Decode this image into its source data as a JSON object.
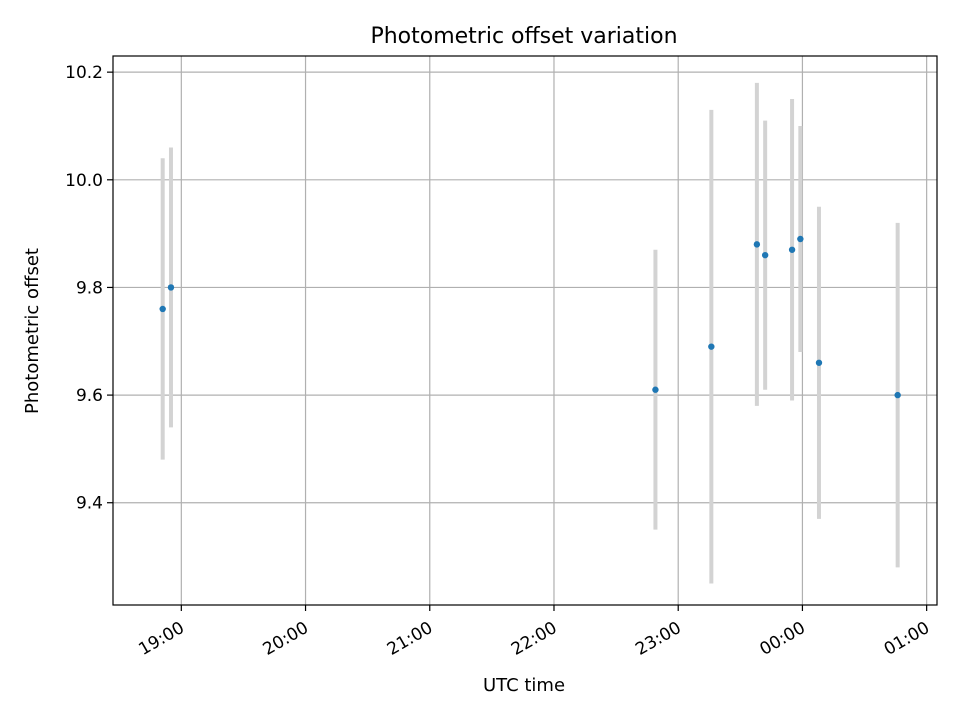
{
  "chart_data": {
    "type": "scatter",
    "title": "Photometric offset variation",
    "xlabel": "UTC time",
    "ylabel": "Photometric offset",
    "x_axis_type": "time",
    "x_ticks": [
      "19:00",
      "20:00",
      "21:00",
      "22:00",
      "23:00",
      "00:00",
      "01:00"
    ],
    "y_ticks": [
      "9.4",
      "9.6",
      "9.8",
      "10.0",
      "10.2"
    ],
    "xlim": [
      "18:27",
      "01:05"
    ],
    "ylim": [
      9.21,
      10.23
    ],
    "grid": true,
    "legend": false,
    "series": [
      {
        "marker_color": "#1f77b4",
        "errorbar_color": "#d3d3d3",
        "points": [
          {
            "x": "18:51",
            "y": 9.76,
            "err": 0.28
          },
          {
            "x": "18:55",
            "y": 9.8,
            "err": 0.26
          },
          {
            "x": "22:49",
            "y": 9.61,
            "err": 0.26
          },
          {
            "x": "23:16",
            "y": 9.69,
            "err": 0.44
          },
          {
            "x": "23:38",
            "y": 9.88,
            "err": 0.3
          },
          {
            "x": "23:42",
            "y": 9.86,
            "err": 0.25
          },
          {
            "x": "23:55",
            "y": 9.87,
            "err": 0.28
          },
          {
            "x": "23:59",
            "y": 9.89,
            "err": 0.21
          },
          {
            "x": "00:08",
            "y": 9.66,
            "err": 0.29
          },
          {
            "x": "00:46",
            "y": 9.6,
            "err": 0.32
          }
        ]
      }
    ]
  }
}
